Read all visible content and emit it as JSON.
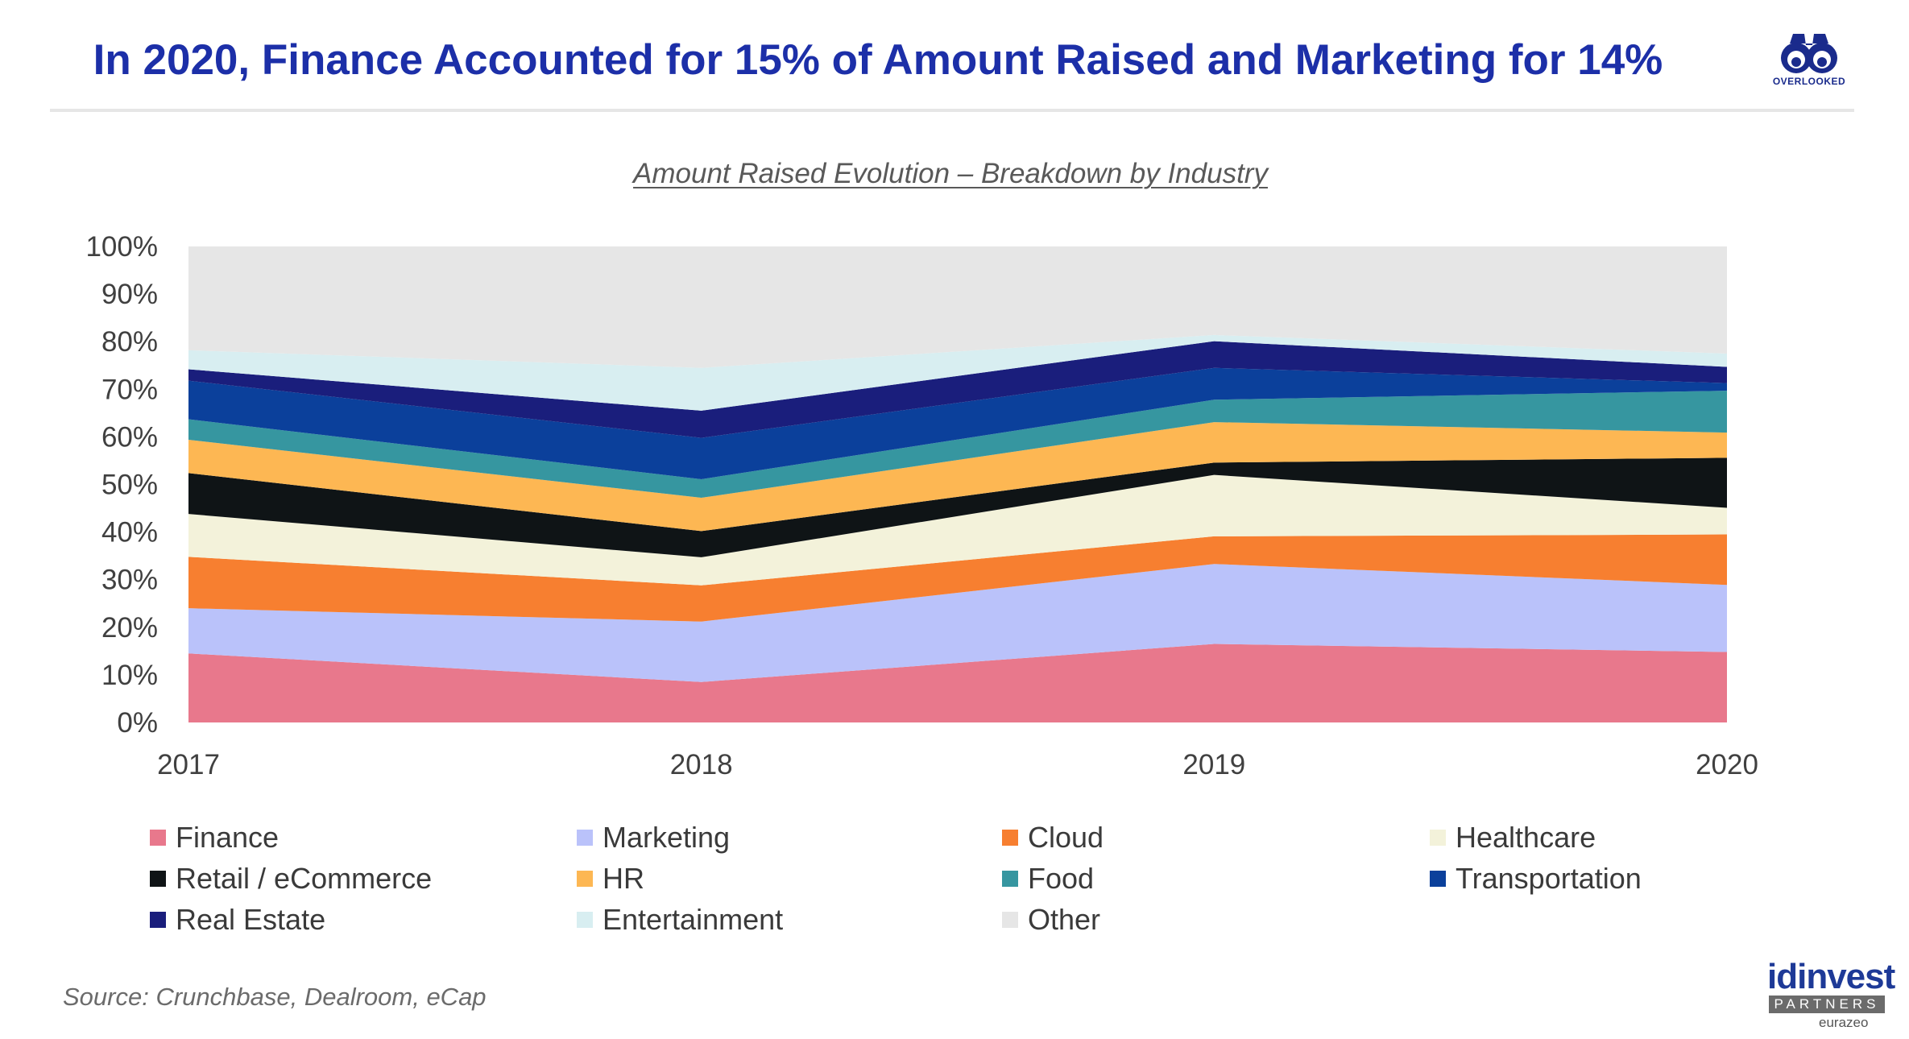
{
  "header": {
    "title": "In 2020, Finance Accounted for 15% of Amount Raised and Marketing for 14%",
    "logo_text": "OVERLOOKED"
  },
  "footer": {
    "source": "Source: Crunchbase, Dealroom, eCap",
    "partner_logo": {
      "name": "idinvest",
      "sub": "PARTNERS",
      "tag": "eurazeo"
    }
  },
  "colors": {
    "title": "#1c2fa8",
    "Finance": "#e8788c",
    "Marketing": "#bac2fa",
    "Cloud": "#f77f30",
    "Healthcare": "#f3f2da",
    "Retail / eCommerce": "#0f1416",
    "HR": "#fdb753",
    "Food": "#3696a0",
    "Transportation": "#0b409b",
    "Real Estate": "#1a1e7c",
    "Entertainment": "#d8eef1",
    "Other": "#e6e6e6"
  },
  "chart_data": {
    "type": "area",
    "stacked": true,
    "title": "Amount Raised Evolution – Breakdown by Industry",
    "x": [
      "2017",
      "2018",
      "2019",
      "2020"
    ],
    "ylim": [
      0,
      100
    ],
    "yticks": [
      "0%",
      "10%",
      "20%",
      "30%",
      "40%",
      "50%",
      "60%",
      "70%",
      "80%",
      "90%",
      "100%"
    ],
    "unit": "%",
    "legend_position": "bottom",
    "grid": false,
    "series": [
      {
        "name": "Finance",
        "values": [
          14.5,
          8.5,
          16.5,
          14.8
        ]
      },
      {
        "name": "Marketing",
        "values": [
          9.5,
          12.7,
          16.8,
          14.1
        ]
      },
      {
        "name": "Cloud",
        "values": [
          10.8,
          7.6,
          5.8,
          10.6
        ]
      },
      {
        "name": "Healthcare",
        "values": [
          9.0,
          5.9,
          12.9,
          5.6
        ]
      },
      {
        "name": "Retail / eCommerce",
        "values": [
          8.6,
          5.5,
          2.6,
          10.5
        ]
      },
      {
        "name": "HR",
        "values": [
          7.0,
          7.0,
          8.5,
          5.3
        ]
      },
      {
        "name": "Food",
        "values": [
          4.3,
          3.9,
          4.7,
          8.8
        ]
      },
      {
        "name": "Transportation",
        "values": [
          8.1,
          8.7,
          6.7,
          1.6
        ]
      },
      {
        "name": "Real Estate",
        "values": [
          2.4,
          5.7,
          5.6,
          3.4
        ]
      },
      {
        "name": "Entertainment",
        "values": [
          4.0,
          9.0,
          1.3,
          2.8
        ]
      },
      {
        "name": "Other",
        "values": [
          21.8,
          25.5,
          18.6,
          22.5
        ]
      }
    ]
  }
}
